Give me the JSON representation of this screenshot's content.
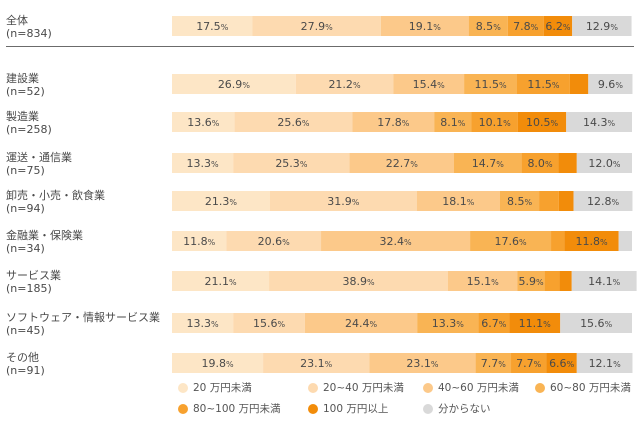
{
  "chart_data": {
    "type": "bar",
    "orientation": "horizontal",
    "stacked": true,
    "percent_suffix": "%",
    "categories": [
      {
        "name": "全体",
        "n": "(n=834)"
      },
      {
        "name": "建設業",
        "n": "(n=52)"
      },
      {
        "name": "製造業",
        "n": "(n=258)"
      },
      {
        "name": "運送・通信業",
        "n": "(n=75)"
      },
      {
        "name": "卸売・小売・飲食業",
        "n": "(n=94)"
      },
      {
        "name": "金融業・保険業",
        "n": "(n=34)"
      },
      {
        "name": "サービス業",
        "n": "(n=185)"
      },
      {
        "name": "ソフトウェア・情報サービス業",
        "n": "(n=45)"
      },
      {
        "name": "その他",
        "n": "(n=91)"
      }
    ],
    "series": [
      {
        "name": "20 万円未満",
        "color": "#fde6c6",
        "values": [
          17.5,
          26.9,
          13.6,
          13.3,
          21.3,
          11.8,
          21.1,
          13.3,
          19.8
        ]
      },
      {
        "name": "20~40 万円未満",
        "color": "#fddab0",
        "values": [
          27.9,
          21.2,
          25.6,
          25.3,
          31.9,
          20.6,
          38.9,
          15.6,
          23.1
        ]
      },
      {
        "name": "40~60 万円未満",
        "color": "#fcc98a",
        "values": [
          19.1,
          15.4,
          17.8,
          22.7,
          18.1,
          32.4,
          15.1,
          24.4,
          23.1
        ]
      },
      {
        "name": "60~80 万円未満",
        "color": "#f9b454",
        "values": [
          8.5,
          11.5,
          8.1,
          14.7,
          8.5,
          17.6,
          5.9,
          13.3,
          7.7
        ]
      },
      {
        "name": "80~100 万円未満",
        "color": "#f7a12e",
        "values": [
          7.8,
          11.5,
          10.1,
          8.0,
          4.3,
          2.9,
          3.2,
          6.7,
          7.7
        ]
      },
      {
        "name": "100 万円以上",
        "color": "#f28c0a",
        "values": [
          6.2,
          4.0,
          10.5,
          4.0,
          3.2,
          11.8,
          2.7,
          11.1,
          6.6
        ]
      },
      {
        "name": "分からない",
        "color": "#d9d9d9",
        "values": [
          12.9,
          9.6,
          14.3,
          12.0,
          12.8,
          2.9,
          14.1,
          15.6,
          12.1
        ]
      }
    ],
    "shown_labels": [
      [
        "17.5",
        "27.9",
        "19.1",
        "8.5",
        "7.8",
        "6.2",
        "12.9"
      ],
      [
        "26.9",
        "21.2",
        "15.4",
        "11.5",
        "11.5",
        "",
        "9.6"
      ],
      [
        "13.6",
        "25.6",
        "17.8",
        "8.1",
        "10.1",
        "10.5",
        "14.3"
      ],
      [
        "13.3",
        "25.3",
        "22.7",
        "14.7",
        "8.0",
        "",
        "12.0"
      ],
      [
        "21.3",
        "31.9",
        "18.1",
        "8.5",
        "",
        "",
        "12.8"
      ],
      [
        "11.8",
        "20.6",
        "32.4",
        "17.6",
        "",
        "11.8",
        ""
      ],
      [
        "21.1",
        "38.9",
        "15.1",
        "5.9",
        "",
        "",
        "14.1"
      ],
      [
        "13.3",
        "15.6",
        "24.4",
        "13.3",
        "6.7",
        "11.1",
        "15.6"
      ],
      [
        "19.8",
        "23.1",
        "23.1",
        "7.7",
        "7.7",
        "6.6",
        "12.1"
      ]
    ],
    "xlim": [
      0,
      100
    ],
    "legend_position": "bottom",
    "grid": false
  }
}
